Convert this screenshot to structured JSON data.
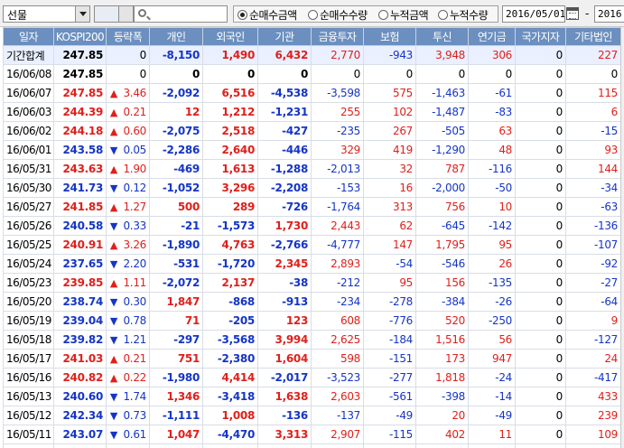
{
  "toolbar": {
    "market_select": "선물",
    "radio_options": [
      {
        "label": "순매수금액",
        "selected": true
      },
      {
        "label": "순매수수량",
        "selected": false
      },
      {
        "label": "누적금액",
        "selected": false
      },
      {
        "label": "누적수량",
        "selected": false
      }
    ],
    "start_date": "2016/05/01",
    "tilde": "-",
    "end_date": "2016"
  },
  "columns": [
    "일자",
    "KOSPI200",
    "등락폭",
    "개인",
    "외국인",
    "기관",
    "금융투자",
    "보험",
    "투신",
    "연기금",
    "국가지자",
    "기타법인"
  ],
  "colors": {
    "up": "#e0201b",
    "down": "#1535c8",
    "header": "#6b8fbf"
  },
  "rows": [
    {
      "date": "기간합계",
      "kospi": "247.85",
      "dir": "",
      "change": "0",
      "indiv": "-8,150",
      "foreign": "1,490",
      "inst": "6,432",
      "fin": "2,770",
      "ins": "-943",
      "trust": "3,948",
      "pension": "306",
      "gov": "0",
      "corp": "227"
    },
    {
      "date": "16/06/08",
      "kospi": "247.85",
      "dir": "",
      "change": "0",
      "indiv": "0",
      "foreign": "0",
      "inst": "0",
      "fin": "0",
      "ins": "0",
      "trust": "0",
      "pension": "0",
      "gov": "0",
      "corp": "0"
    },
    {
      "date": "16/06/07",
      "kospi": "247.85",
      "dir": "up",
      "change": "3.46",
      "indiv": "-2,092",
      "foreign": "6,516",
      "inst": "-4,538",
      "fin": "-3,598",
      "ins": "575",
      "trust": "-1,463",
      "pension": "-61",
      "gov": "0",
      "corp": "115"
    },
    {
      "date": "16/06/03",
      "kospi": "244.39",
      "dir": "up",
      "change": "0.21",
      "indiv": "12",
      "foreign": "1,212",
      "inst": "-1,231",
      "fin": "255",
      "ins": "102",
      "trust": "-1,487",
      "pension": "-83",
      "gov": "0",
      "corp": "6"
    },
    {
      "date": "16/06/02",
      "kospi": "244.18",
      "dir": "up",
      "change": "0.60",
      "indiv": "-2,075",
      "foreign": "2,518",
      "inst": "-427",
      "fin": "-235",
      "ins": "267",
      "trust": "-505",
      "pension": "63",
      "gov": "0",
      "corp": "-15"
    },
    {
      "date": "16/06/01",
      "kospi": "243.58",
      "dir": "down",
      "change": "0.05",
      "indiv": "-2,286",
      "foreign": "2,640",
      "inst": "-446",
      "fin": "329",
      "ins": "419",
      "trust": "-1,290",
      "pension": "48",
      "gov": "0",
      "corp": "93"
    },
    {
      "date": "16/05/31",
      "kospi": "243.63",
      "dir": "up",
      "change": "1.90",
      "indiv": "-469",
      "foreign": "1,613",
      "inst": "-1,288",
      "fin": "-2,013",
      "ins": "32",
      "trust": "787",
      "pension": "-116",
      "gov": "0",
      "corp": "144"
    },
    {
      "date": "16/05/30",
      "kospi": "241.73",
      "dir": "down",
      "change": "0.12",
      "indiv": "-1,052",
      "foreign": "3,296",
      "inst": "-2,208",
      "fin": "-153",
      "ins": "16",
      "trust": "-2,000",
      "pension": "-50",
      "gov": "0",
      "corp": "-34"
    },
    {
      "date": "16/05/27",
      "kospi": "241.85",
      "dir": "up",
      "change": "1.27",
      "indiv": "500",
      "foreign": "289",
      "inst": "-726",
      "fin": "-1,764",
      "ins": "313",
      "trust": "756",
      "pension": "10",
      "gov": "0",
      "corp": "-63"
    },
    {
      "date": "16/05/26",
      "kospi": "240.58",
      "dir": "down",
      "change": "0.33",
      "indiv": "-21",
      "foreign": "-1,573",
      "inst": "1,730",
      "fin": "2,443",
      "ins": "62",
      "trust": "-645",
      "pension": "-142",
      "gov": "0",
      "corp": "-136"
    },
    {
      "date": "16/05/25",
      "kospi": "240.91",
      "dir": "up",
      "change": "3.26",
      "indiv": "-1,890",
      "foreign": "4,763",
      "inst": "-2,766",
      "fin": "-4,777",
      "ins": "147",
      "trust": "1,795",
      "pension": "95",
      "gov": "0",
      "corp": "-107"
    },
    {
      "date": "16/05/24",
      "kospi": "237.65",
      "dir": "down",
      "change": "2.20",
      "indiv": "-531",
      "foreign": "-1,720",
      "inst": "2,345",
      "fin": "2,893",
      "ins": "-54",
      "trust": "-546",
      "pension": "26",
      "gov": "0",
      "corp": "-92"
    },
    {
      "date": "16/05/23",
      "kospi": "239.85",
      "dir": "up",
      "change": "1.11",
      "indiv": "-2,072",
      "foreign": "2,137",
      "inst": "-38",
      "fin": "-212",
      "ins": "95",
      "trust": "156",
      "pension": "-135",
      "gov": "0",
      "corp": "-27"
    },
    {
      "date": "16/05/20",
      "kospi": "238.74",
      "dir": "down",
      "change": "0.30",
      "indiv": "1,847",
      "foreign": "-868",
      "inst": "-913",
      "fin": "-234",
      "ins": "-278",
      "trust": "-384",
      "pension": "-26",
      "gov": "0",
      "corp": "-64"
    },
    {
      "date": "16/05/19",
      "kospi": "239.04",
      "dir": "down",
      "change": "0.78",
      "indiv": "71",
      "foreign": "-205",
      "inst": "123",
      "fin": "608",
      "ins": "-776",
      "trust": "520",
      "pension": "-250",
      "gov": "0",
      "corp": "9"
    },
    {
      "date": "16/05/18",
      "kospi": "239.82",
      "dir": "down",
      "change": "1.21",
      "indiv": "-297",
      "foreign": "-3,568",
      "inst": "3,994",
      "fin": "2,625",
      "ins": "-184",
      "trust": "1,516",
      "pension": "56",
      "gov": "0",
      "corp": "-127"
    },
    {
      "date": "16/05/17",
      "kospi": "241.03",
      "dir": "up",
      "change": "0.21",
      "indiv": "751",
      "foreign": "-2,380",
      "inst": "1,604",
      "fin": "598",
      "ins": "-151",
      "trust": "173",
      "pension": "947",
      "gov": "0",
      "corp": "24"
    },
    {
      "date": "16/05/16",
      "kospi": "240.82",
      "dir": "up",
      "change": "0.22",
      "indiv": "-1,980",
      "foreign": "4,414",
      "inst": "-2,017",
      "fin": "-3,523",
      "ins": "-277",
      "trust": "1,818",
      "pension": "-24",
      "gov": "0",
      "corp": "-417"
    },
    {
      "date": "16/05/13",
      "kospi": "240.60",
      "dir": "down",
      "change": "1.74",
      "indiv": "1,346",
      "foreign": "-3,418",
      "inst": "1,638",
      "fin": "2,603",
      "ins": "-561",
      "trust": "-398",
      "pension": "-14",
      "gov": "0",
      "corp": "433"
    },
    {
      "date": "16/05/12",
      "kospi": "242.34",
      "dir": "down",
      "change": "0.73",
      "indiv": "-1,111",
      "foreign": "1,008",
      "inst": "-136",
      "fin": "-137",
      "ins": "-49",
      "trust": "20",
      "pension": "-49",
      "gov": "0",
      "corp": "239"
    },
    {
      "date": "16/05/11",
      "kospi": "243.07",
      "dir": "down",
      "change": "0.61",
      "indiv": "1,047",
      "foreign": "-4,470",
      "inst": "3,313",
      "fin": "2,907",
      "ins": "-115",
      "trust": "402",
      "pension": "11",
      "gov": "0",
      "corp": "109"
    },
    {
      "date": "16/05/10",
      "kospi": "243.68",
      "dir": "up",
      "change": "1.45",
      "indiv": "-2,936",
      "foreign": "2,724",
      "inst": "257",
      "fin": "-2,424",
      "ins": "117",
      "trust": "2,674",
      "pension": "-151",
      "gov": "0",
      "corp": "-45"
    }
  ]
}
